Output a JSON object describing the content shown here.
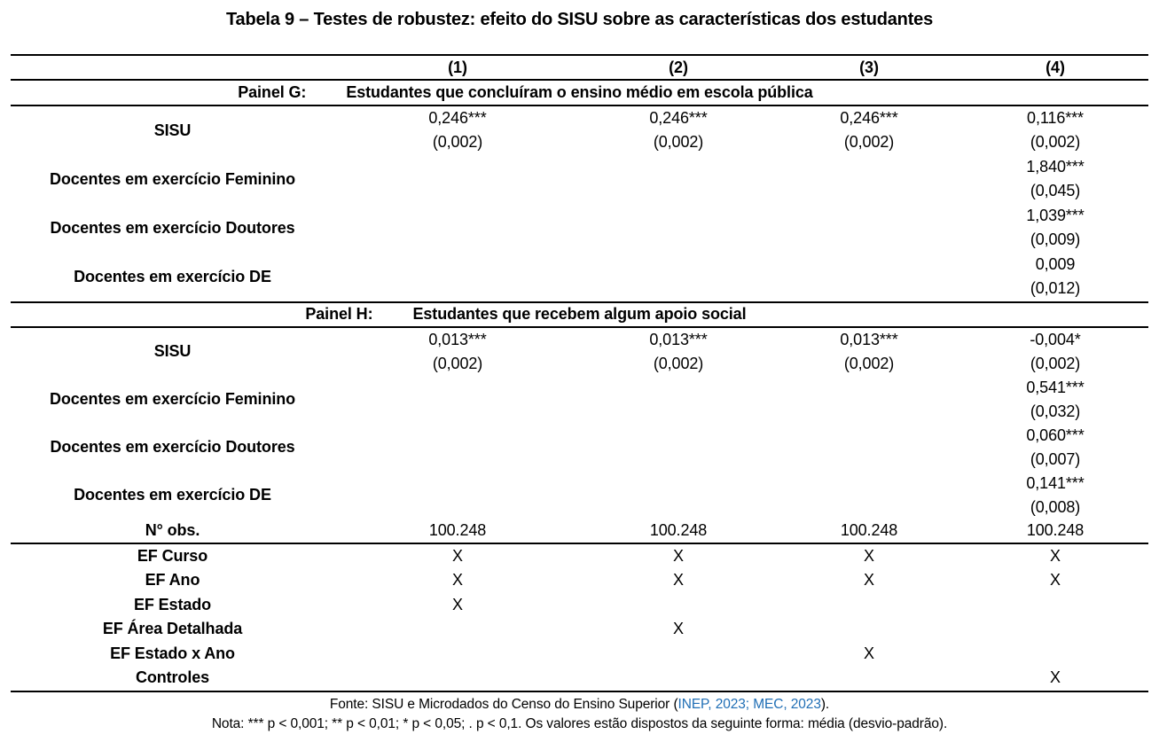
{
  "title": "Tabela 9 – Testes de robustez: efeito do SISU sobre as características dos estudantes",
  "columns": [
    "(1)",
    "(2)",
    "(3)",
    "(4)"
  ],
  "panels": [
    {
      "label": "Painel G:",
      "description": "Estudantes que concluíram o ensino médio em escola pública",
      "rows": [
        {
          "label": "SISU",
          "cells": [
            {
              "est": "0,246***",
              "se": "(0,002)"
            },
            {
              "est": "0,246***",
              "se": "(0,002)"
            },
            {
              "est": "0,246***",
              "se": "(0,002)"
            },
            {
              "est": "0,116***",
              "se": "(0,002)"
            }
          ]
        },
        {
          "label": "Docentes em exercício Feminino",
          "cells": [
            null,
            null,
            null,
            {
              "est": "1,840***",
              "se": "(0,045)"
            }
          ]
        },
        {
          "label": "Docentes em exercício Doutores",
          "cells": [
            null,
            null,
            null,
            {
              "est": "1,039***",
              "se": "(0,009)"
            }
          ]
        },
        {
          "label": "Docentes em exercício DE",
          "cells": [
            null,
            null,
            null,
            {
              "est": "0,009",
              "se": "(0,012)"
            }
          ]
        }
      ]
    },
    {
      "label": "Painel H:",
      "description": "Estudantes que recebem algum apoio social",
      "rows": [
        {
          "label": "SISU",
          "cells": [
            {
              "est": "0,013***",
              "se": "(0,002)"
            },
            {
              "est": "0,013***",
              "se": "(0,002)"
            },
            {
              "est": "0,013***",
              "se": "(0,002)"
            },
            {
              "est": "-0,004*",
              "se": "(0,002)"
            }
          ]
        },
        {
          "label": "Docentes em exercício Feminino",
          "cells": [
            null,
            null,
            null,
            {
              "est": "0,541***",
              "se": "(0,032)"
            }
          ]
        },
        {
          "label": "Docentes em exercício Doutores",
          "cells": [
            null,
            null,
            null,
            {
              "est": "0,060***",
              "se": "(0,007)"
            }
          ]
        },
        {
          "label": "Docentes em exercício DE",
          "cells": [
            null,
            null,
            null,
            {
              "est": "0,141***",
              "se": "(0,008)"
            }
          ]
        }
      ]
    }
  ],
  "obs_row": {
    "label": "N° obs.",
    "values": [
      "100.248",
      "100.248",
      "100.248",
      "100.248"
    ]
  },
  "fe_rows": [
    {
      "label": "EF Curso",
      "marks": [
        "X",
        "X",
        "X",
        "X"
      ]
    },
    {
      "label": "EF Ano",
      "marks": [
        "X",
        "X",
        "X",
        "X"
      ]
    },
    {
      "label": "EF Estado",
      "marks": [
        "X",
        "",
        "",
        ""
      ]
    },
    {
      "label": "EF Área Detalhada",
      "marks": [
        "",
        "X",
        "",
        ""
      ]
    },
    {
      "label": "EF Estado x Ano",
      "marks": [
        "",
        "",
        "X",
        ""
      ]
    },
    {
      "label": "Controles",
      "marks": [
        "",
        "",
        "",
        "X"
      ]
    }
  ],
  "footer": {
    "fonte_prefix": "Fonte: SISU e Microdados do Censo do Ensino Superior (",
    "fonte_link": "INEP, 2023; MEC, 2023",
    "fonte_suffix": ").",
    "nota": "Nota: *** p < 0,001; ** p < 0,01; * p < 0,05; . p < 0,1. Os valores estão dispostos da seguinte forma: média (desvio-padrão)."
  },
  "colors": {
    "link_blue": "#1f6eb5",
    "text": "#000000",
    "background": "#ffffff"
  }
}
